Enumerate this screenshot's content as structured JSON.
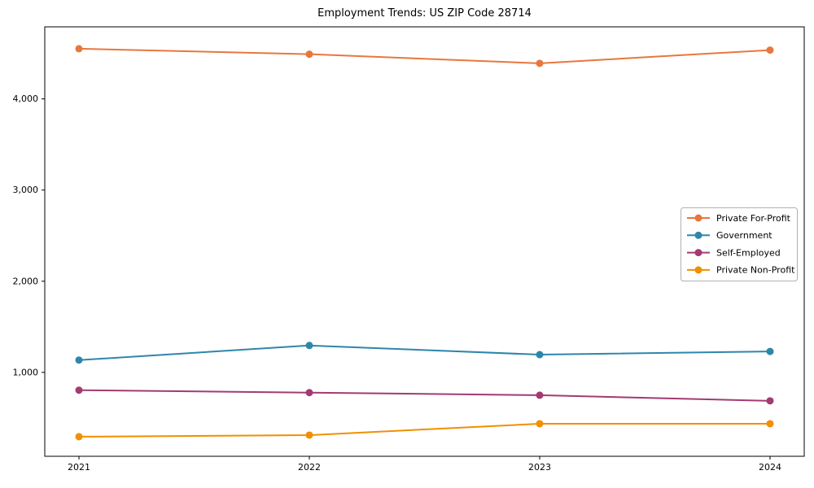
{
  "title": "Employment Trends: US ZIP Code 28714",
  "chart_data": {
    "type": "line",
    "title": "Employment Trends: US ZIP Code 28714",
    "xlabel": "",
    "ylabel": "",
    "categories": [
      "2021",
      "2022",
      "2023",
      "2024"
    ],
    "series": [
      {
        "name": "Private For-Profit",
        "color": "#E8773D",
        "values": [
          4550,
          4490,
          4390,
          4535
        ]
      },
      {
        "name": "Government",
        "color": "#2E86AB",
        "values": [
          1135,
          1295,
          1195,
          1230
        ]
      },
      {
        "name": "Self-Employed",
        "color": "#A23B72",
        "values": [
          805,
          778,
          750,
          688
        ]
      },
      {
        "name": "Private Non-Profit",
        "color": "#F18F01",
        "values": [
          295,
          312,
          437,
          437
        ]
      }
    ],
    "ylim": [
      80,
      4790
    ],
    "yticks": [
      1000,
      2000,
      3000,
      4000
    ],
    "ytick_labels": [
      "1,000",
      "2,000",
      "3,000",
      "4,000"
    ],
    "grid": false,
    "legend_position": "center-right",
    "marker": "circle",
    "axis_color": "#000000",
    "legend_border_color": "#b0b0b0",
    "background_color": "#ffffff"
  }
}
